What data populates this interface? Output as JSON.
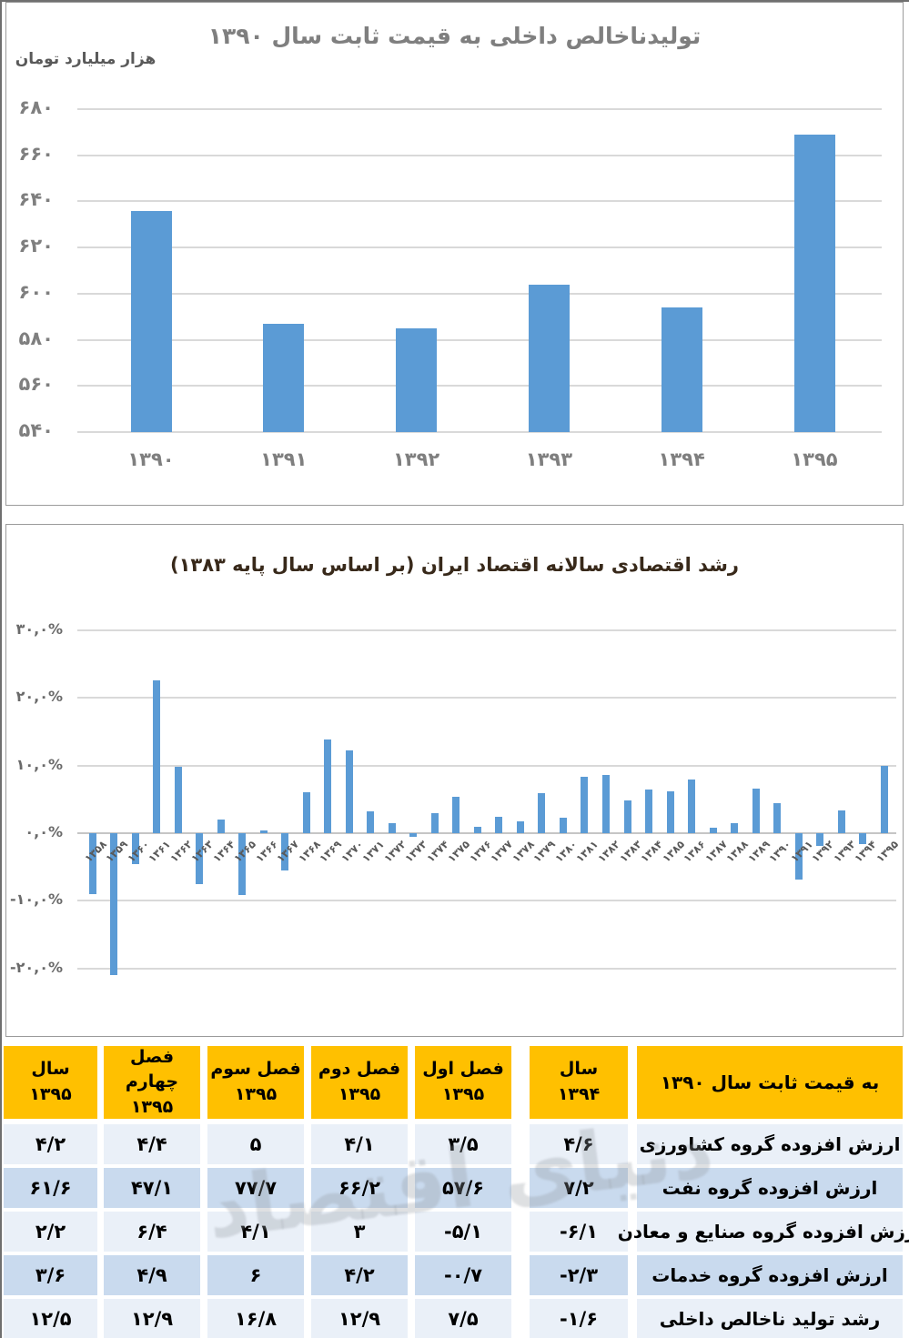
{
  "watermark": "دنیای اقتصاد",
  "colors": {
    "bar": "#5B9BD5",
    "grid": "#D9D9D9",
    "grid_zero": "#C6C6C6",
    "chart1_title": "#7F7F7F",
    "chart2_title": "#38291A",
    "axis_text": "#7F7F7F",
    "axis_text_small": "#595959",
    "header_bg": "#FFC000",
    "row_light": "#EAF0F8",
    "row_dark": "#C9DAEE",
    "table_text": "#000000"
  },
  "chart_data": [
    {
      "type": "bar",
      "title": "تولیدناخالص داخلی به قیمت ثابت سال ۱۳۹۰",
      "xlabel": "",
      "ylabel": "هزار میلیارد تومان",
      "categories": [
        "۱۳۹۰",
        "۱۳۹۱",
        "۱۳۹۲",
        "۱۳۹۳",
        "۱۳۹۴",
        "۱۳۹۵"
      ],
      "values": [
        636,
        587,
        585,
        604,
        594,
        669
      ],
      "ylim": [
        540,
        680
      ],
      "grid": true,
      "legend": "none",
      "y_ticks": [
        {
          "v": 540,
          "label": "۵۴۰"
        },
        {
          "v": 560,
          "label": "۵۶۰"
        },
        {
          "v": 580,
          "label": "۵۸۰"
        },
        {
          "v": 600,
          "label": "۶۰۰"
        },
        {
          "v": 620,
          "label": "۶۲۰"
        },
        {
          "v": 640,
          "label": "۶۴۰"
        },
        {
          "v": 660,
          "label": "۶۶۰"
        },
        {
          "v": 680,
          "label": "۶۸۰"
        }
      ]
    },
    {
      "type": "bar",
      "title": "رشد اقتصادی سالانه اقتصاد ایران (بر اساس سال پایه ۱۳۸۳)",
      "xlabel": "",
      "ylabel": "",
      "ylim": [
        -25,
        32
      ],
      "grid": true,
      "legend": "none",
      "y_ticks": [
        {
          "v": 30,
          "label": "۳۰,۰%"
        },
        {
          "v": 20,
          "label": "۲۰,۰%"
        },
        {
          "v": 10,
          "label": "۱۰,۰%"
        },
        {
          "v": 0,
          "label": "۰,۰%"
        },
        {
          "v": -10,
          "label": "-۱۰,۰%"
        },
        {
          "v": -20,
          "label": "-۲۰,۰%"
        }
      ],
      "categories": [
        "۱۳۵۸",
        "۱۳۵۹",
        "۱۳۶۰",
        "۱۳۶۱",
        "۱۳۶۲",
        "۱۳۶۳",
        "۱۳۶۴",
        "۱۳۶۵",
        "۱۳۶۶",
        "۱۳۶۷",
        "۱۳۶۸",
        "۱۳۶۹",
        "۱۳۷۰",
        "۱۳۷۱",
        "۱۳۷۲",
        "۱۳۷۳",
        "۱۳۷۴",
        "۱۳۷۵",
        "۱۳۷۶",
        "۱۳۷۷",
        "۱۳۷۸",
        "۱۳۷۹",
        "۱۳۸۰",
        "۱۳۸۱",
        "۱۳۸۲",
        "۱۳۸۳",
        "۱۳۸۴",
        "۱۳۸۵",
        "۱۳۸۶",
        "۱۳۸۷",
        "۱۳۸۸",
        "۱۳۸۹",
        "۱۳۹۰",
        "۱۳۹۱",
        "۱۳۹۲",
        "۱۳۹۳",
        "۱۳۹۴",
        "۱۳۹۵"
      ],
      "values": [
        -9.0,
        -21.0,
        -4.6,
        22.6,
        9.8,
        -7.5,
        2.0,
        -9.2,
        0.4,
        -5.5,
        6.0,
        13.9,
        12.3,
        3.2,
        1.5,
        -0.5,
        2.9,
        5.4,
        0.9,
        2.4,
        1.8,
        5.9,
        2.3,
        8.3,
        8.6,
        4.8,
        6.4,
        6.2,
        7.9,
        0.8,
        1.5,
        6.6,
        4.5,
        -6.8,
        -1.9,
        3.4,
        -1.6,
        10.0
      ]
    },
    {
      "type": "table",
      "columns": [
        "به قیمت ثابت سال ۱۳۹۰",
        "سال ۱۳۹۴",
        "فصل اول ۱۳۹۵",
        "فصل دوم ۱۳۹۵",
        "فصل سوم ۱۳۹۵",
        "فصل چهارم ۱۳۹۵",
        "سال ۱۳۹۵"
      ],
      "rows": [
        {
          "label": "ارزش افزوده گروه کشاورزی",
          "values": [
            "۴/۶",
            "۳/۵",
            "۴/۱",
            "۵",
            "۴/۴",
            "۴/۲"
          ]
        },
        {
          "label": "ارزش افزوده گروه نفت",
          "values": [
            "۷/۲",
            "۵۷/۶",
            "۶۶/۲",
            "۷۷/۷",
            "۴۷/۱",
            "۶۱/۶"
          ]
        },
        {
          "label": "ارزش افزوده گروه صنایع و معادن",
          "values": [
            "-۶/۱",
            "-۵/۱",
            "۳",
            "۴/۱",
            "۶/۴",
            "۲/۲"
          ]
        },
        {
          "label": "ارزش افزوده گروه خدمات",
          "values": [
            "-۲/۳",
            "-۰/۷",
            "۴/۲",
            "۶",
            "۴/۹",
            "۳/۶"
          ]
        },
        {
          "label": "رشد تولید ناخالص داخلی",
          "values": [
            "-۱/۶",
            "۷/۵",
            "۱۲/۹",
            "۱۶/۸",
            "۱۲/۹",
            "۱۲/۵"
          ]
        }
      ]
    }
  ]
}
